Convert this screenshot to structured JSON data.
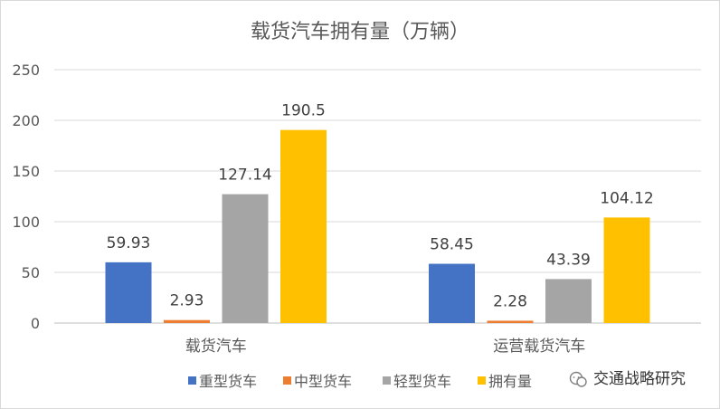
{
  "chart_data": {
    "type": "bar",
    "title": "载货汽车拥有量（万辆）",
    "categories": [
      "载货汽车",
      "运营载货汽车"
    ],
    "series": [
      {
        "name": "重型货车",
        "color": "#4472C4",
        "values": [
          59.93,
          58.45
        ],
        "labels": [
          "59.93",
          "58.45"
        ]
      },
      {
        "name": "中型货车",
        "color": "#ED7D31",
        "values": [
          2.93,
          2.28
        ],
        "labels": [
          "2.93",
          "2.28"
        ]
      },
      {
        "name": "轻型货车",
        "color": "#A5A5A5",
        "values": [
          127.14,
          43.39
        ],
        "labels": [
          "127.14",
          "43.39"
        ]
      },
      {
        "name": "拥有量",
        "color": "#FFC000",
        "values": [
          190.5,
          104.12
        ],
        "labels": [
          "190.5",
          "104.12"
        ]
      }
    ],
    "ylim": [
      0,
      250
    ],
    "yticks": [
      "0",
      "50",
      "100",
      "150",
      "200",
      "250"
    ],
    "grid": true,
    "legend_position": "bottom"
  },
  "watermark": {
    "icon": "wechat-icon",
    "text": "交通战略研究"
  },
  "colors": {
    "grid": "#d9d9d9",
    "axis": "#bfbfbf",
    "text": "#595959"
  }
}
